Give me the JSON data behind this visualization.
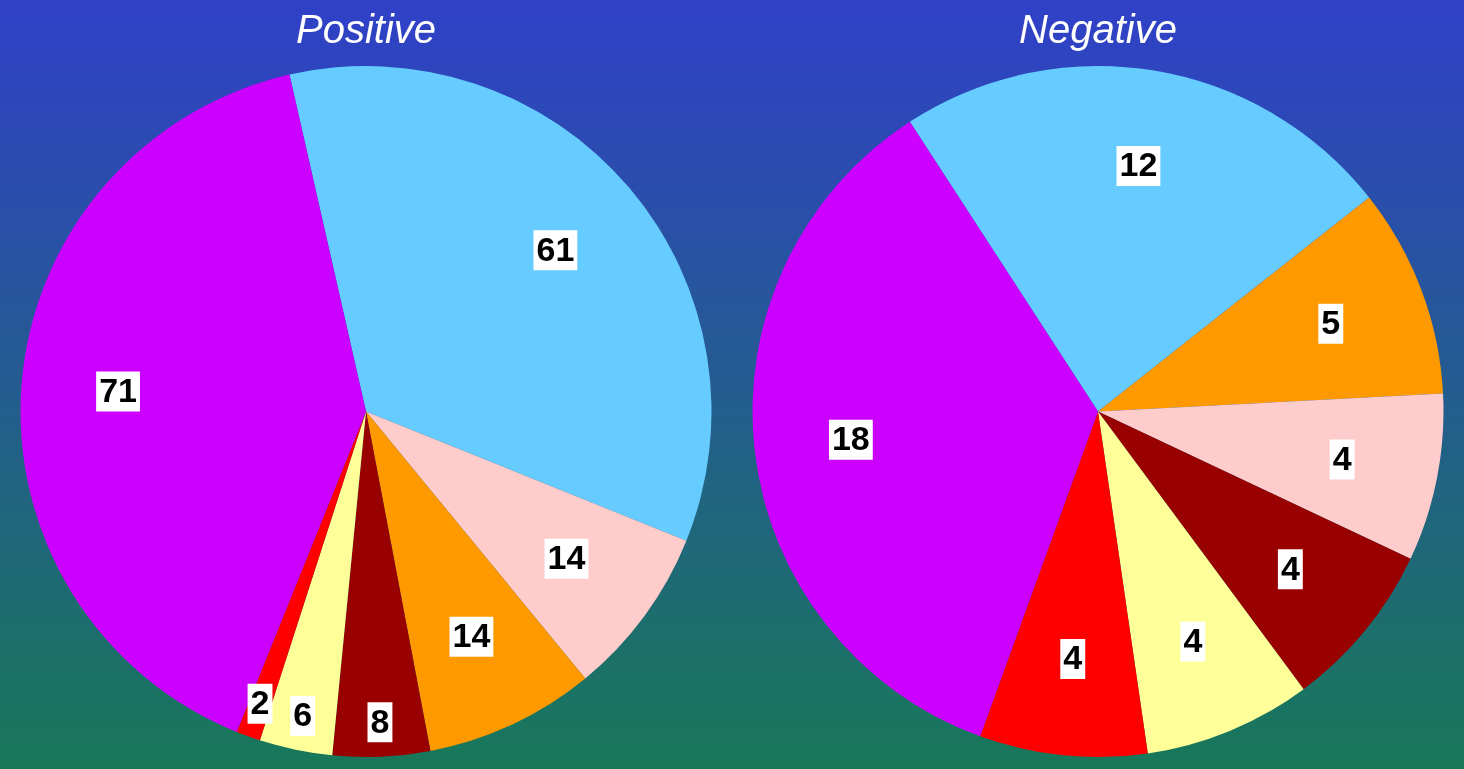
{
  "chart_data": [
    {
      "type": "pie",
      "title": "Positive",
      "categories": [
        null,
        null,
        null,
        null,
        null,
        null,
        null
      ],
      "values": [
        61,
        14,
        14,
        8,
        6,
        2,
        71
      ],
      "colors": [
        "#66ccff",
        "#ffcccc",
        "#ff9900",
        "#990000",
        "#ffff99",
        "#ff0000",
        "#cc00ff"
      ],
      "data_labels": true,
      "legend": false
    },
    {
      "type": "pie",
      "title": "Negative",
      "categories": [
        null,
        null,
        null,
        null,
        null,
        null,
        null
      ],
      "values": [
        12,
        5,
        4,
        4,
        4,
        4,
        18
      ],
      "colors": [
        "#66ccff",
        "#ff9900",
        "#ffcccc",
        "#990000",
        "#ffff99",
        "#ff0000",
        "#cc00ff"
      ],
      "data_labels": true,
      "legend": false
    }
  ]
}
